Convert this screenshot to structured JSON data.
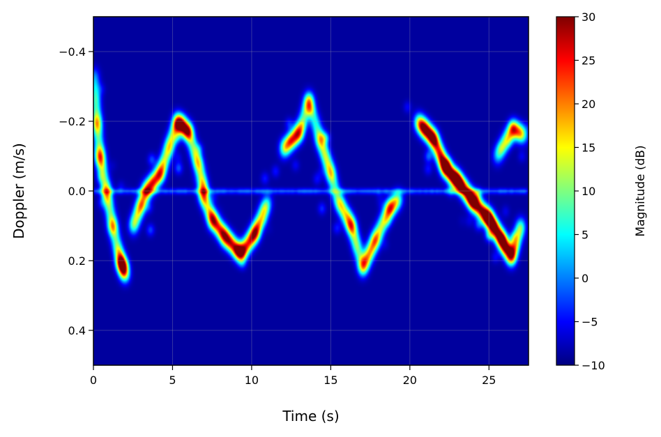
{
  "chart_data": {
    "type": "heatmap",
    "title": "",
    "xlabel": "Time (s)",
    "ylabel": "Doppler (m/s)",
    "xlim": [
      0,
      27.5
    ],
    "ylim": [
      0.5,
      -0.5
    ],
    "y_axis_inverted": true,
    "x_ticks": [
      0,
      5,
      10,
      15,
      20,
      25
    ],
    "y_ticks": [
      -0.4,
      -0.2,
      0.0,
      0.2,
      0.4
    ],
    "y_tick_labels": [
      "−0.4",
      "−0.2",
      "0.0",
      "0.2",
      "0.4"
    ],
    "grid": true,
    "colormap": "jet",
    "background_color": "#00008f",
    "colorbar": {
      "label": "Magnitude (dB)",
      "range": [
        -10,
        30
      ],
      "ticks": [
        -10,
        -5,
        0,
        5,
        10,
        15,
        20,
        25,
        30
      ],
      "tick_labels": [
        "−10",
        "−5",
        "0",
        "5",
        "10",
        "15",
        "20",
        "25",
        "30"
      ],
      "colors": [
        "#00007f",
        "#0000ff",
        "#007fff",
        "#00ffff",
        "#7fff7f",
        "#ffff00",
        "#ff7f00",
        "#ff0000",
        "#7f0000"
      ]
    },
    "baseline_level_db": -10,
    "signature_tracks": [
      {
        "points": [
          [
            0.05,
            -0.33
          ],
          [
            0.2,
            -0.2
          ],
          [
            0.4,
            -0.1
          ],
          [
            0.8,
            0.0
          ],
          [
            1.2,
            0.1
          ],
          [
            1.7,
            0.2
          ],
          [
            2.0,
            0.24
          ]
        ],
        "peak_db": 22
      },
      {
        "points": [
          [
            2.5,
            0.1
          ],
          [
            3.3,
            0.0
          ],
          [
            4.2,
            -0.05
          ],
          [
            5.3,
            -0.2
          ],
          [
            6.0,
            -0.17
          ],
          [
            6.6,
            -0.08
          ],
          [
            7.0,
            0.0
          ]
        ],
        "peak_db": 18
      },
      {
        "points": [
          [
            6.8,
            0.0
          ],
          [
            7.5,
            0.08
          ],
          [
            8.3,
            0.13
          ],
          [
            9.3,
            0.18
          ],
          [
            10.2,
            0.12
          ],
          [
            11.0,
            0.03
          ]
        ],
        "peak_db": 16
      },
      {
        "points": [
          [
            12.0,
            -0.12
          ],
          [
            13.0,
            -0.17
          ],
          [
            13.6,
            -0.26
          ],
          [
            14.3,
            -0.15
          ],
          [
            15.0,
            -0.05
          ],
          [
            15.4,
            0.02
          ]
        ],
        "peak_db": 14
      },
      {
        "points": [
          [
            15.5,
            0.03
          ],
          [
            16.3,
            0.1
          ],
          [
            17.0,
            0.22
          ],
          [
            17.8,
            0.14
          ],
          [
            18.7,
            0.05
          ],
          [
            19.3,
            0.02
          ]
        ],
        "peak_db": 14
      },
      {
        "points": [
          [
            20.5,
            -0.2
          ],
          [
            21.5,
            -0.15
          ],
          [
            22.2,
            -0.07
          ],
          [
            23.0,
            -0.03
          ],
          [
            24.0,
            0.03
          ],
          [
            25.0,
            0.08
          ],
          [
            25.8,
            0.14
          ],
          [
            26.4,
            0.19
          ],
          [
            27.0,
            0.1
          ]
        ],
        "peak_db": 23
      },
      {
        "points": [
          [
            25.5,
            -0.1
          ],
          [
            26.5,
            -0.18
          ],
          [
            27.2,
            -0.16
          ]
        ],
        "peak_db": 8
      }
    ]
  }
}
